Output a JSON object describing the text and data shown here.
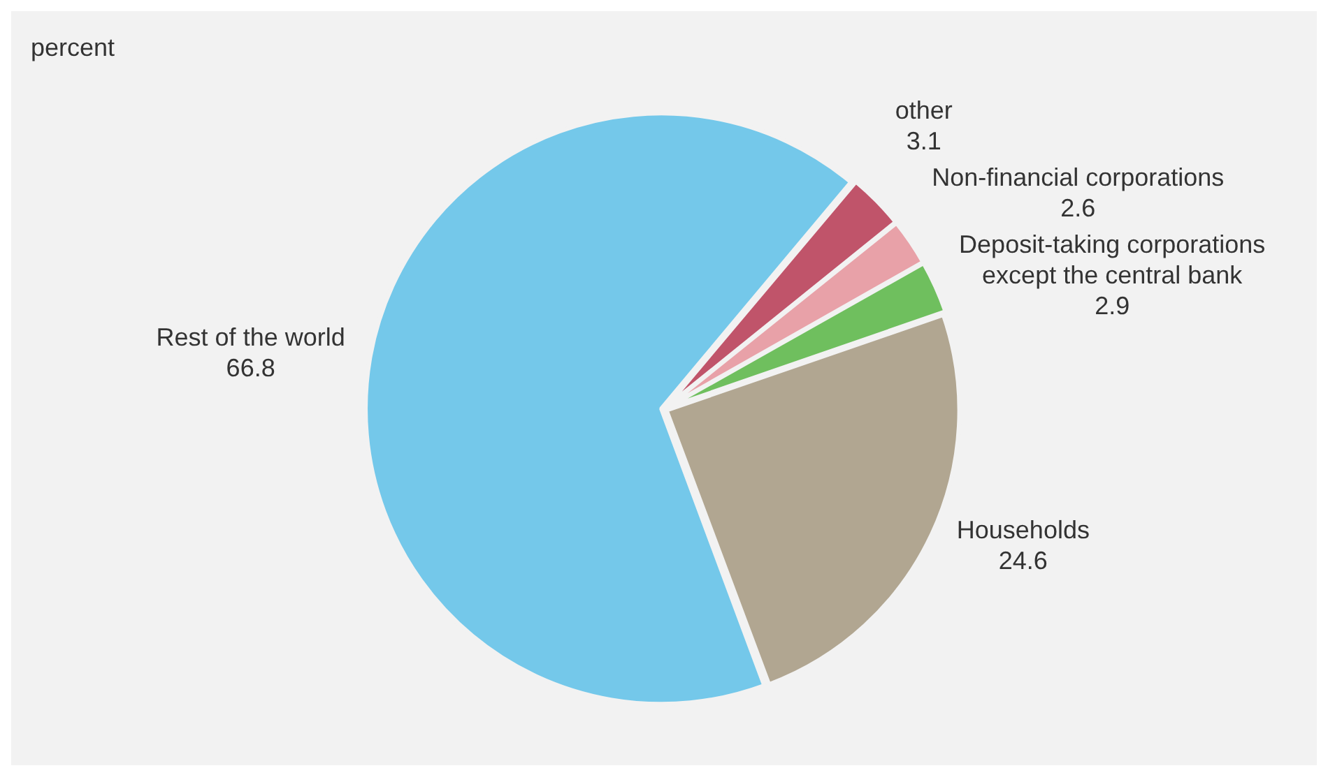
{
  "chart_data": {
    "type": "pie",
    "title": "percent",
    "categories": [
      "other",
      "Non-financial corporations",
      "Deposit-taking corporations except the central bank",
      "Households",
      "Rest of the world"
    ],
    "values": [
      3.1,
      2.6,
      2.9,
      24.6,
      66.8
    ],
    "colors": [
      "#c0546a",
      "#e8a1a8",
      "#6fbf5e",
      "#b1a691",
      "#74c8ea"
    ],
    "data_labels": true,
    "legend": false
  }
}
